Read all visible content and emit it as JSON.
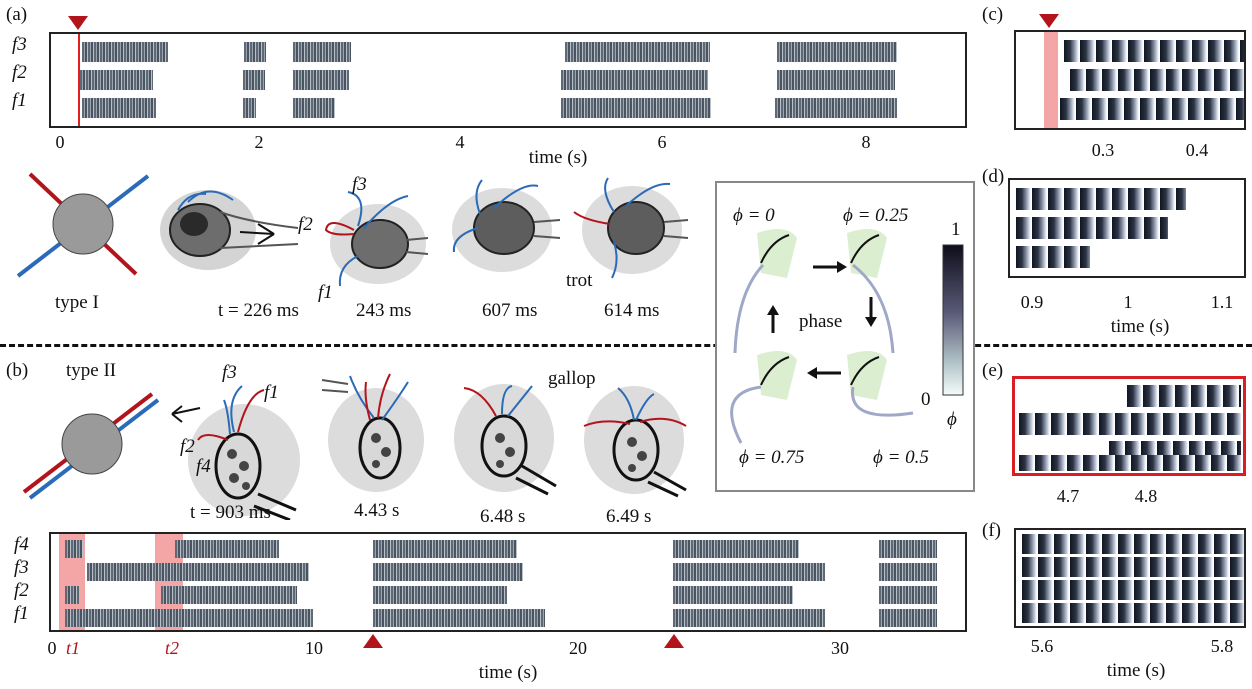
{
  "panels": {
    "a": {
      "label": "(a)",
      "rows": [
        "f3",
        "f2",
        "f1"
      ],
      "ticks": [
        "0",
        "2",
        "4",
        "6",
        "8"
      ],
      "xlabel": "time (s)"
    },
    "b": {
      "label": "(b)",
      "rows": [
        "f4",
        "f3",
        "f2",
        "f1"
      ],
      "ticks": [
        "0",
        "10",
        "20",
        "30"
      ],
      "marks": [
        "t1",
        "t2"
      ],
      "xlabel": "time (s)"
    },
    "c": {
      "label": "(c)",
      "ticks": [
        "0.3",
        "0.4"
      ]
    },
    "d": {
      "label": "(d)",
      "ticks": [
        "0.9",
        "1",
        "1.1"
      ],
      "xlabel": "time (s)"
    },
    "e": {
      "label": "(e)",
      "ticks": [
        "4.7",
        "4.8"
      ]
    },
    "f": {
      "label": "(f)",
      "ticks": [
        "5.6",
        "5.8"
      ],
      "xlabel": "time (s)"
    }
  },
  "type1": {
    "title": "type I",
    "frames": [
      "t = 226 ms",
      "243 ms",
      "607 ms",
      "614 ms"
    ],
    "labels": {
      "f3": "f3",
      "f2": "f2",
      "f1": "f1",
      "trot": "trot"
    }
  },
  "type2": {
    "title": "type II",
    "frames": [
      "t = 903 ms",
      "4.43 s",
      "6.48 s",
      "6.49 s"
    ],
    "labels": {
      "f3": "f3",
      "f1": "f1",
      "f2": "f2",
      "f4": "f4",
      "gallop": "gallop"
    }
  },
  "phase_box": {
    "phi0": "ϕ = 0",
    "phi025": "ϕ = 0.25",
    "phi05": "ϕ = 0.5",
    "phi075": "ϕ = 0.75",
    "phase": "phase",
    "cb_top": "1",
    "cb_bottom": "0",
    "cb_label": "ϕ"
  },
  "colors": {
    "red": "#b3141b",
    "blue": "#2a6ab8",
    "highlight": "#f4a6a6",
    "bar": "#5f6875"
  }
}
